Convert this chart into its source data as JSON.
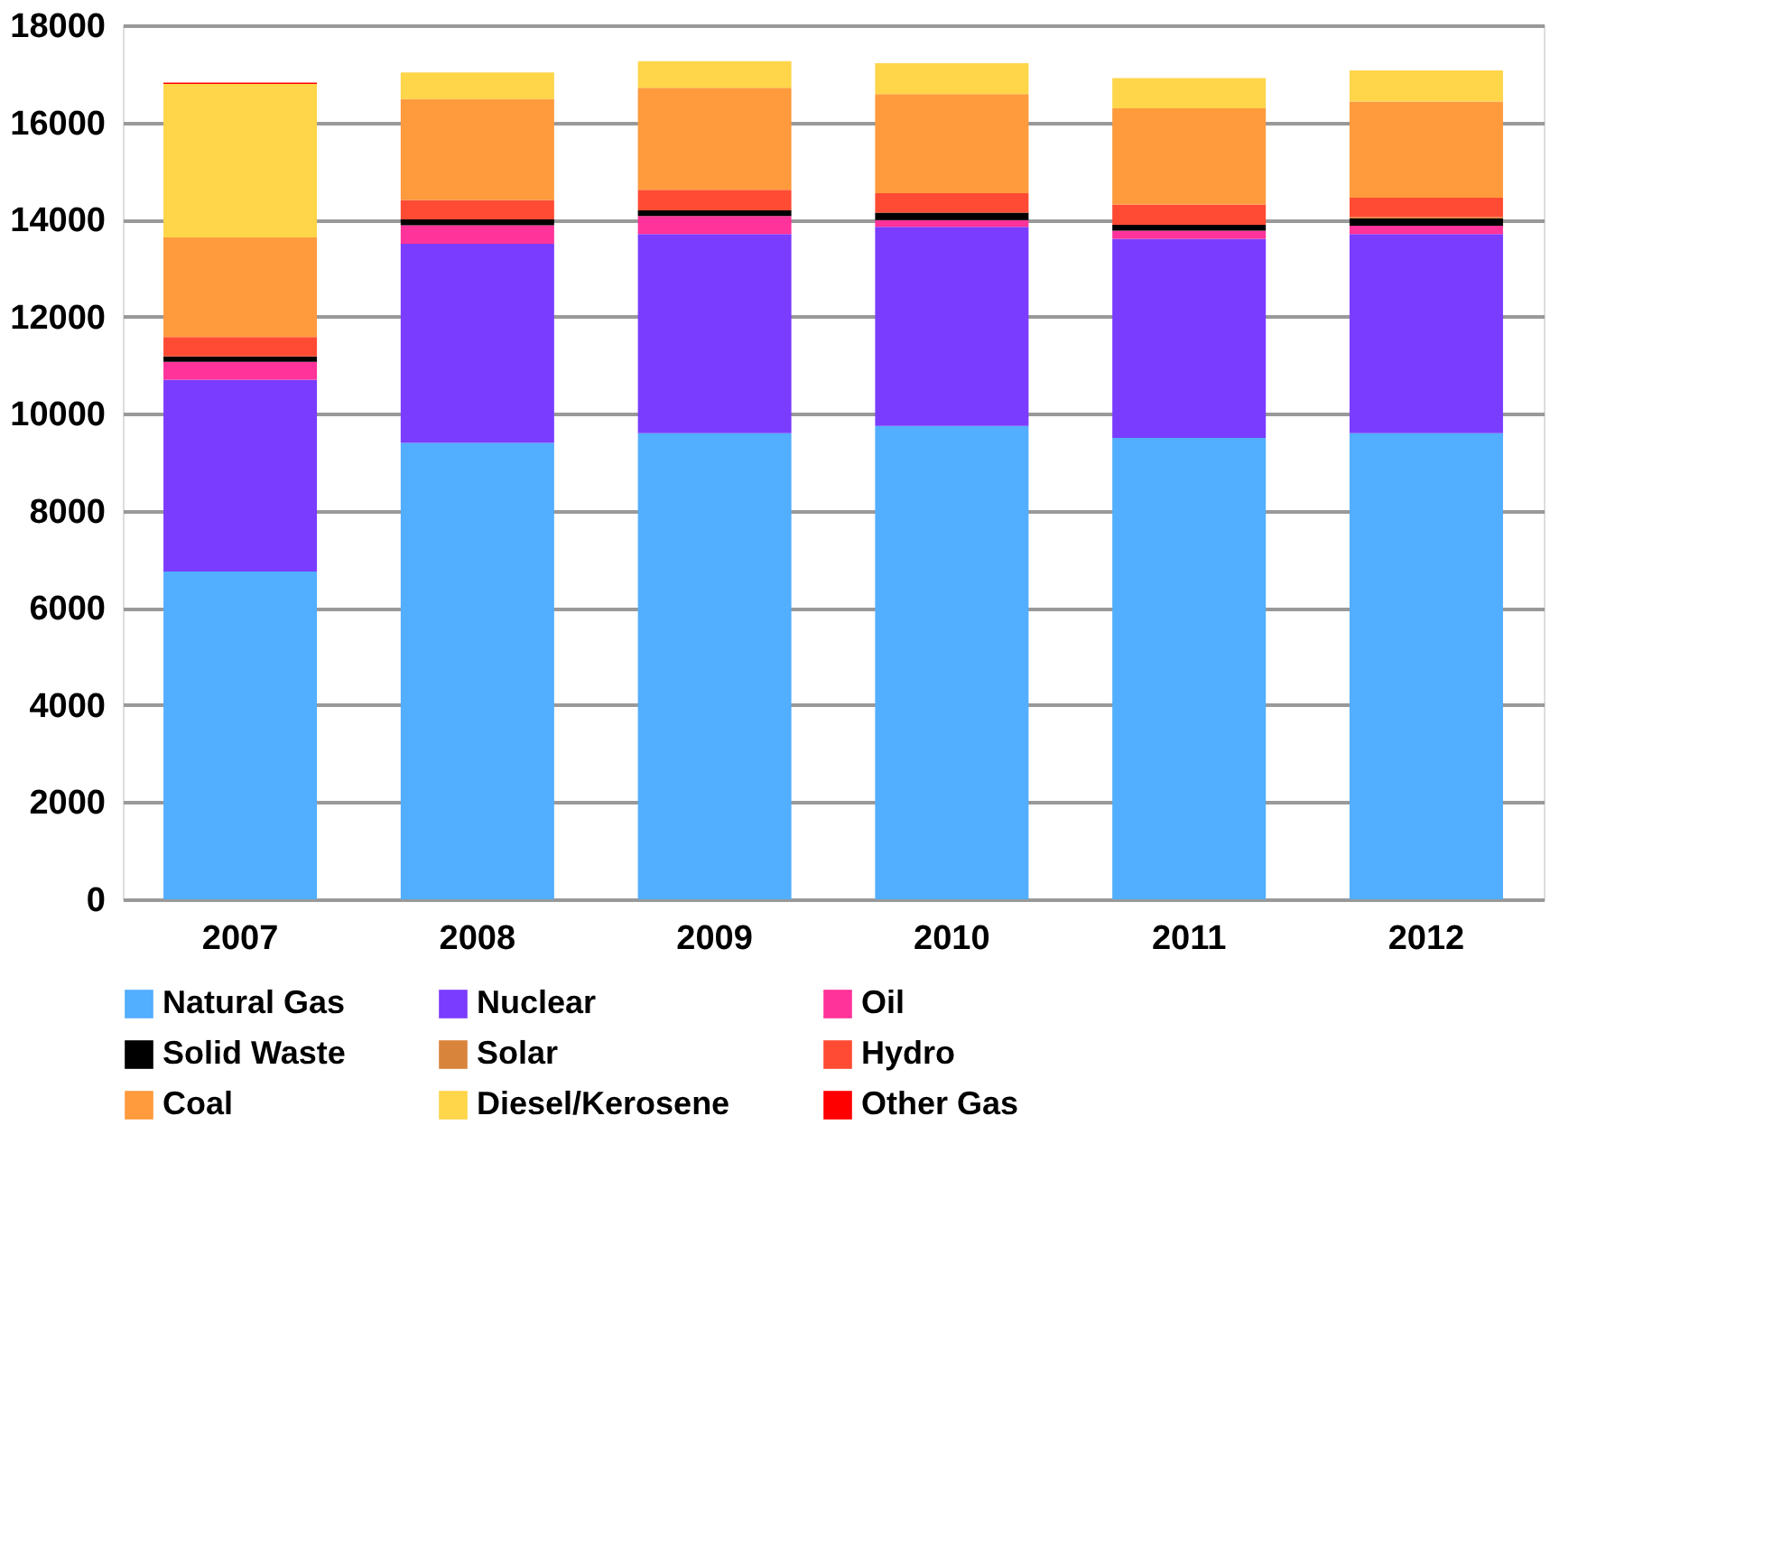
{
  "chart_data": {
    "type": "bar",
    "stacked": true,
    "categories": [
      "2007",
      "2008",
      "2009",
      "2010",
      "2011",
      "2012"
    ],
    "series": [
      {
        "name": "Natural Gas",
        "color": "#52aefe",
        "values": [
          6750,
          9400,
          9600,
          9750,
          9500,
          9600
        ]
      },
      {
        "name": "Nuclear",
        "color": "#7a3cff",
        "values": [
          3950,
          4100,
          4100,
          4100,
          4100,
          4100
        ]
      },
      {
        "name": "Oil",
        "color": "#ff3399",
        "values": [
          370,
          380,
          370,
          140,
          170,
          170
        ]
      },
      {
        "name": "Solid Waste",
        "color": "#000000",
        "values": [
          110,
          120,
          120,
          150,
          120,
          150
        ]
      },
      {
        "name": "Solar",
        "color": "#d9843b",
        "values": [
          0,
          0,
          0,
          0,
          0,
          30
        ]
      },
      {
        "name": "Hydro",
        "color": "#ff4b33",
        "values": [
          400,
          400,
          420,
          400,
          420,
          400
        ]
      },
      {
        "name": "Coal",
        "color": "#ff9a3d",
        "values": [
          2050,
          2080,
          2100,
          2040,
          1980,
          1980
        ]
      },
      {
        "name": "Diesel/Kerosene",
        "color": "#ffd54a",
        "values": [
          3160,
          550,
          550,
          640,
          620,
          640
        ]
      },
      {
        "name": "Other Gas",
        "color": "#ff0000",
        "values": [
          30,
          0,
          0,
          0,
          0,
          0
        ]
      }
    ],
    "ylim": [
      0,
      18000
    ],
    "yticks": [
      0,
      2000,
      4000,
      6000,
      8000,
      10000,
      12000,
      14000,
      16000,
      18000
    ],
    "grid": "y",
    "legend": "bottom"
  }
}
